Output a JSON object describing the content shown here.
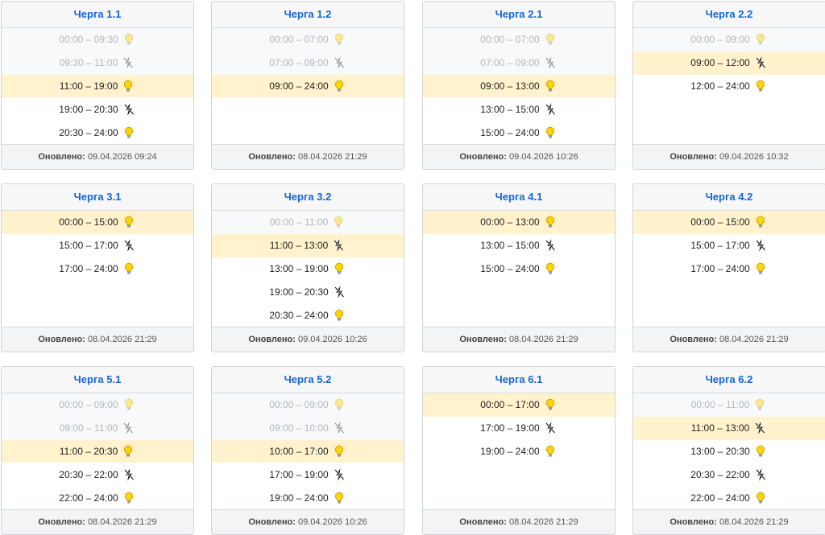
{
  "updated_label": "Оновлено:",
  "icons": {
    "on": "light-bulb-icon",
    "off": "power-off-icon"
  },
  "colors": {
    "title": "#1565d8",
    "current_row": "#fff2cc",
    "bulb": "#ffd400"
  },
  "queues": [
    {
      "name": "Черга 1.1",
      "updated": "09.04.2026 09:24",
      "slots": [
        {
          "time": "00:00 – 09:30",
          "power": "on",
          "state": "past"
        },
        {
          "time": "09:30 – 11:00",
          "power": "off",
          "state": "past"
        },
        {
          "time": "11:00 – 19:00",
          "power": "on",
          "state": "current"
        },
        {
          "time": "19:00 – 20:30",
          "power": "off",
          "state": "future"
        },
        {
          "time": "20:30 – 24:00",
          "power": "on",
          "state": "future"
        }
      ]
    },
    {
      "name": "Черга 1.2",
      "updated": "08.04.2026 21:29",
      "slots": [
        {
          "time": "00:00 – 07:00",
          "power": "on",
          "state": "past"
        },
        {
          "time": "07:00 – 09:00",
          "power": "off",
          "state": "past"
        },
        {
          "time": "09:00 – 24:00",
          "power": "on",
          "state": "current"
        }
      ]
    },
    {
      "name": "Черга 2.1",
      "updated": "09.04.2026 10:26",
      "slots": [
        {
          "time": "00:00 – 07:00",
          "power": "on",
          "state": "past"
        },
        {
          "time": "07:00 – 09:00",
          "power": "off",
          "state": "past"
        },
        {
          "time": "09:00 – 13:00",
          "power": "on",
          "state": "current"
        },
        {
          "time": "13:00 – 15:00",
          "power": "off",
          "state": "future"
        },
        {
          "time": "15:00 – 24:00",
          "power": "on",
          "state": "future"
        }
      ]
    },
    {
      "name": "Черга 2.2",
      "updated": "09.04.2026 10:32",
      "slots": [
        {
          "time": "00:00 – 09:00",
          "power": "on",
          "state": "past"
        },
        {
          "time": "09:00 – 12:00",
          "power": "off",
          "state": "current"
        },
        {
          "time": "12:00 – 24:00",
          "power": "on",
          "state": "future"
        }
      ]
    },
    {
      "name": "Черга 3.1",
      "updated": "08.04.2026 21:29",
      "slots": [
        {
          "time": "00:00 – 15:00",
          "power": "on",
          "state": "current"
        },
        {
          "time": "15:00 – 17:00",
          "power": "off",
          "state": "future"
        },
        {
          "time": "17:00 – 24:00",
          "power": "on",
          "state": "future"
        }
      ]
    },
    {
      "name": "Черга 3.2",
      "updated": "09.04.2026 10:26",
      "slots": [
        {
          "time": "00:00 – 11:00",
          "power": "on",
          "state": "past"
        },
        {
          "time": "11:00 – 13:00",
          "power": "off",
          "state": "current"
        },
        {
          "time": "13:00 – 19:00",
          "power": "on",
          "state": "future"
        },
        {
          "time": "19:00 – 20:30",
          "power": "off",
          "state": "future"
        },
        {
          "time": "20:30 – 24:00",
          "power": "on",
          "state": "future"
        }
      ]
    },
    {
      "name": "Черга 4.1",
      "updated": "08.04.2026 21:29",
      "slots": [
        {
          "time": "00:00 – 13:00",
          "power": "on",
          "state": "current"
        },
        {
          "time": "13:00 – 15:00",
          "power": "off",
          "state": "future"
        },
        {
          "time": "15:00 – 24:00",
          "power": "on",
          "state": "future"
        }
      ]
    },
    {
      "name": "Черга 4.2",
      "updated": "08.04.2026 21:29",
      "slots": [
        {
          "time": "00:00 – 15:00",
          "power": "on",
          "state": "current"
        },
        {
          "time": "15:00 – 17:00",
          "power": "off",
          "state": "future"
        },
        {
          "time": "17:00 – 24:00",
          "power": "on",
          "state": "future"
        }
      ]
    },
    {
      "name": "Черга 5.1",
      "updated": "08.04.2026 21:29",
      "slots": [
        {
          "time": "00:00 – 09:00",
          "power": "on",
          "state": "past"
        },
        {
          "time": "09:00 – 11:00",
          "power": "off",
          "state": "past"
        },
        {
          "time": "11:00 – 20:30",
          "power": "on",
          "state": "current"
        },
        {
          "time": "20:30 – 22:00",
          "power": "off",
          "state": "future"
        },
        {
          "time": "22:00 – 24:00",
          "power": "on",
          "state": "future"
        }
      ]
    },
    {
      "name": "Черга 5.2",
      "updated": "09.04.2026 10:26",
      "slots": [
        {
          "time": "00:00 – 09:00",
          "power": "on",
          "state": "past"
        },
        {
          "time": "09:00 – 10:00",
          "power": "off",
          "state": "past"
        },
        {
          "time": "10:00 – 17:00",
          "power": "on",
          "state": "current"
        },
        {
          "time": "17:00 – 19:00",
          "power": "off",
          "state": "future"
        },
        {
          "time": "19:00 – 24:00",
          "power": "on",
          "state": "future"
        }
      ]
    },
    {
      "name": "Черга 6.1",
      "updated": "08.04.2026 21:29",
      "slots": [
        {
          "time": "00:00 – 17:00",
          "power": "on",
          "state": "current"
        },
        {
          "time": "17:00 – 19:00",
          "power": "off",
          "state": "future"
        },
        {
          "time": "19:00 – 24:00",
          "power": "on",
          "state": "future"
        }
      ]
    },
    {
      "name": "Черга 6.2",
      "updated": "08.04.2026 21:29",
      "slots": [
        {
          "time": "00:00 – 11:00",
          "power": "on",
          "state": "past"
        },
        {
          "time": "11:00 – 13:00",
          "power": "off",
          "state": "current"
        },
        {
          "time": "13:00 – 20:30",
          "power": "on",
          "state": "future"
        },
        {
          "time": "20:30 – 22:00",
          "power": "off",
          "state": "future"
        },
        {
          "time": "22:00 – 24:00",
          "power": "on",
          "state": "future"
        }
      ]
    }
  ]
}
